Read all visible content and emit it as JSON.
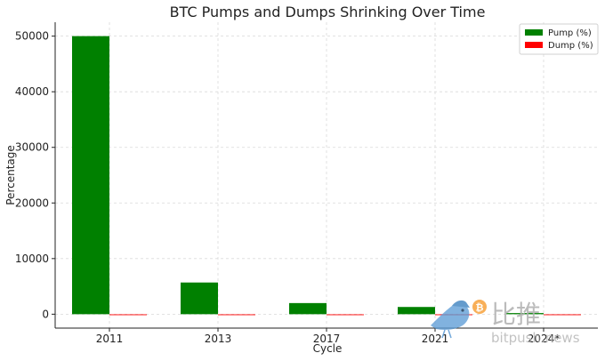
{
  "chart_data": {
    "type": "bar",
    "title": "BTC Pumps and Dumps Shrinking Over Time",
    "xlabel": "Cycle",
    "ylabel": "Percentage",
    "categories": [
      "2011",
      "2013",
      "2017",
      "2021",
      "2024*"
    ],
    "series": [
      {
        "name": "Pump (%)",
        "color": "#008000",
        "values": [
          50000,
          5700,
          2000,
          1300,
          200
        ]
      },
      {
        "name": "Dump (%)",
        "color": "#ff0000",
        "values": [
          -90,
          -85,
          -84,
          -77,
          -60
        ]
      }
    ],
    "ylim": [
      -2500,
      52500
    ],
    "yticks": [
      0,
      10000,
      20000,
      30000,
      40000,
      50000
    ],
    "grid": true,
    "legend_position": "top-right"
  },
  "watermark": {
    "text_cn": "比推",
    "text_en": "bitpush.news",
    "coin_symbol": "₿"
  }
}
